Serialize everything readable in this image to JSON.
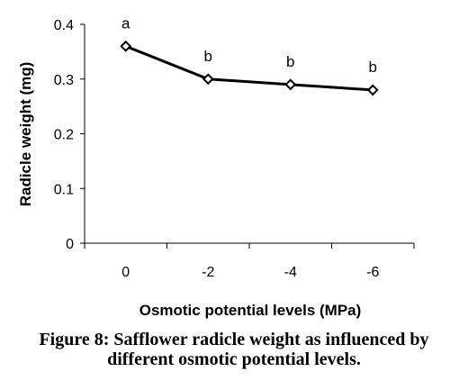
{
  "chart_data": {
    "type": "line",
    "categories": [
      "0",
      "-2",
      "-4",
      "-6"
    ],
    "series": [
      {
        "values": [
          0.36,
          0.3,
          0.29,
          0.28
        ],
        "labels": [
          "a",
          "b",
          "b",
          "b"
        ]
      }
    ],
    "xlabel": "Osmotic potential levels (MPa)",
    "ylabel": "Radicle weight (mg)",
    "ylim": [
      0,
      0.4
    ],
    "yticks": [
      "0",
      "0.1",
      "0.2",
      "0.3",
      "0.4"
    ],
    "grid": false,
    "marker": "diamond-open",
    "line_color": "#000000"
  },
  "caption": {
    "line1": "Figure 8: Safflower radicle weight as influenced by",
    "line2": "different osmotic potential levels."
  }
}
